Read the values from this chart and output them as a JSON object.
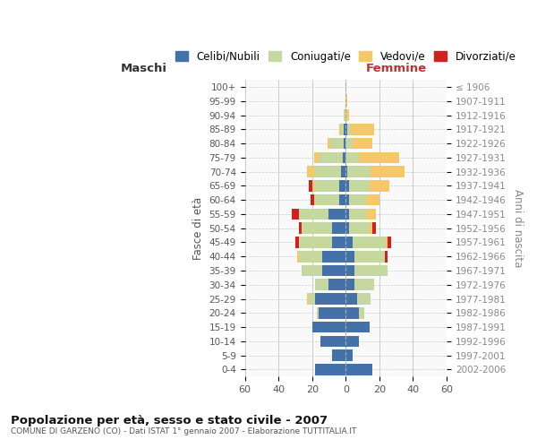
{
  "age_groups": [
    "0-4",
    "5-9",
    "10-14",
    "15-19",
    "20-24",
    "25-29",
    "30-34",
    "35-39",
    "40-44",
    "45-49",
    "50-54",
    "55-59",
    "60-64",
    "65-69",
    "70-74",
    "75-79",
    "80-84",
    "85-89",
    "90-94",
    "95-99",
    "100+"
  ],
  "birth_years": [
    "2002-2006",
    "1997-2001",
    "1992-1996",
    "1987-1991",
    "1982-1986",
    "1977-1981",
    "1972-1976",
    "1967-1971",
    "1962-1966",
    "1957-1961",
    "1952-1956",
    "1947-1951",
    "1942-1946",
    "1937-1941",
    "1932-1936",
    "1927-1931",
    "1922-1926",
    "1917-1921",
    "1912-1916",
    "1907-1911",
    "≤ 1906"
  ],
  "males": {
    "celibi": [
      18,
      8,
      15,
      20,
      16,
      18,
      10,
      14,
      14,
      8,
      8,
      10,
      4,
      4,
      3,
      2,
      1,
      1,
      0,
      0,
      0
    ],
    "coniugati": [
      0,
      0,
      0,
      0,
      1,
      4,
      8,
      12,
      14,
      20,
      18,
      18,
      14,
      15,
      16,
      14,
      8,
      2,
      1,
      0,
      0
    ],
    "vedovi": [
      0,
      0,
      0,
      0,
      0,
      1,
      0,
      0,
      1,
      0,
      0,
      0,
      1,
      1,
      4,
      3,
      2,
      1,
      0,
      0,
      0
    ],
    "divorziati": [
      0,
      0,
      0,
      0,
      0,
      0,
      0,
      0,
      0,
      2,
      2,
      4,
      2,
      2,
      0,
      0,
      0,
      0,
      0,
      0,
      0
    ]
  },
  "females": {
    "nubili": [
      16,
      4,
      8,
      14,
      8,
      7,
      5,
      5,
      5,
      4,
      2,
      2,
      2,
      2,
      1,
      0,
      0,
      1,
      0,
      0,
      0
    ],
    "coniugate": [
      0,
      0,
      0,
      0,
      3,
      8,
      12,
      20,
      18,
      20,
      12,
      10,
      10,
      12,
      14,
      8,
      4,
      2,
      0,
      0,
      0
    ],
    "vedove": [
      0,
      0,
      0,
      0,
      0,
      0,
      0,
      0,
      0,
      1,
      2,
      6,
      8,
      12,
      20,
      24,
      12,
      14,
      2,
      1,
      0
    ],
    "divorziate": [
      0,
      0,
      0,
      0,
      0,
      0,
      0,
      0,
      2,
      2,
      2,
      0,
      0,
      0,
      0,
      0,
      0,
      0,
      0,
      0,
      0
    ]
  },
  "colors": {
    "celibi": "#4472a8",
    "coniugati": "#c5d8a0",
    "vedovi": "#f5c96a",
    "divorziati": "#cc2222"
  },
  "xlim": 60,
  "title": "Popolazione per età, sesso e stato civile - 2007",
  "subtitle": "COMUNE DI GARZENO (CO) - Dati ISTAT 1° gennaio 2007 - Elaborazione TUTTITALIA.IT",
  "xlabel_left": "Maschi",
  "xlabel_right": "Femmine",
  "ylabel_left": "Fasce di età",
  "ylabel_right": "Anni di nascita",
  "legend_labels": [
    "Celibi/Nubili",
    "Coniugati/e",
    "Vedovi/e",
    "Divorziati/e"
  ],
  "bg_color": "#ffffff",
  "plot_bg": "#f9f9f9",
  "grid_color": "#cccccc"
}
